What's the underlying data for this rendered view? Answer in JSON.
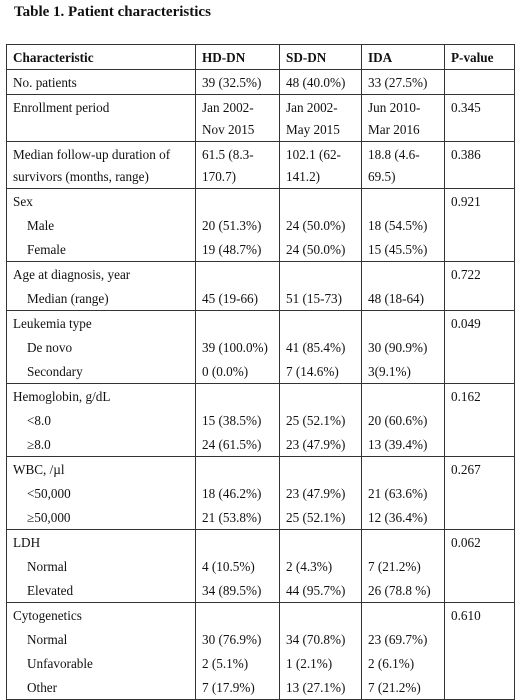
{
  "title": "Table 1. Patient characteristics",
  "header": [
    "Characteristic",
    "HD-DN",
    "SD-DN",
    "IDA",
    "P-value"
  ],
  "rows": {
    "no_patients": [
      "No. patients",
      "39 (32.5%)",
      "48 (40.0%)",
      "33 (27.5%)",
      ""
    ],
    "enrollment": [
      "Enrollment period",
      "Jan 2002-\nNov 2015",
      "Jan 2002-\nMay 2015",
      "Jun 2010-\nMar 2016",
      "0.345"
    ],
    "followup": [
      "Median follow-up duration of\nsurvivors (months, range)",
      "61.5 (8.3-\n170.7)",
      "102.1 (62-\n141.2)",
      "18.8 (4.6-\n69.5)",
      "0.386"
    ],
    "sex": [
      "Sex",
      "",
      "",
      "",
      "0.921"
    ],
    "sex_male": [
      "Male",
      "20 (51.3%)",
      "24 (50.0%)",
      "18 (54.5%)",
      ""
    ],
    "sex_female": [
      "Female",
      "19 (48.7%)",
      "24 (50.0%)",
      "15 (45.5%)",
      ""
    ],
    "age": [
      "Age at diagnosis, year",
      "",
      "",
      "",
      "0.722"
    ],
    "age_median": [
      "Median (range)",
      "45 (19-66)",
      "51 (15-73)",
      "48 (18-64)",
      ""
    ],
    "leuk": [
      "Leukemia type",
      "",
      "",
      "",
      "0.049"
    ],
    "leuk_denovo": [
      "De novo",
      "39 (100.0%)",
      "41 (85.4%)",
      "30 (90.9%)",
      ""
    ],
    "leuk_secondary": [
      "Secondary",
      "0 (0.0%)",
      "7 (14.6%)",
      "3(9.1%)",
      ""
    ],
    "hb": [
      "Hemoglobin, g/dL",
      "",
      "",
      "",
      "0.162"
    ],
    "hb_lt": [
      "<8.0",
      "15 (38.5%)",
      "25 (52.1%)",
      "20 (60.6%)",
      ""
    ],
    "hb_ge": [
      "≥8.0",
      "24 (61.5%)",
      "23 (47.9%)",
      "13 (39.4%)",
      ""
    ],
    "wbc": [
      "WBC, /µl",
      "",
      "",
      "",
      "0.267"
    ],
    "wbc_lt": [
      "<50,000",
      "18 (46.2%)",
      "23 (47.9%)",
      "21 (63.6%)",
      ""
    ],
    "wbc_ge": [
      "≥50,000",
      "21 (53.8%)",
      "25 (52.1%)",
      "12 (36.4%)",
      ""
    ],
    "ldh": [
      "LDH",
      "",
      "",
      "",
      "0.062"
    ],
    "ldh_normal": [
      "Normal",
      "4 (10.5%)",
      "2 (4.3%)",
      "7 (21.2%)",
      ""
    ],
    "ldh_elevated": [
      "Elevated",
      "34 (89.5%)",
      "44 (95.7%)",
      "26 (78.8 %)",
      ""
    ],
    "cyto": [
      "Cytogenetics",
      "",
      "",
      "",
      "0.610"
    ],
    "cyto_normal": [
      "Normal",
      "30 (76.9%)",
      "34 (70.8%)",
      "23 (69.7%)",
      ""
    ],
    "cyto_unfav": [
      "Unfavorable",
      "2 (5.1%)",
      "1 (2.1%)",
      "2 (6.1%)",
      ""
    ],
    "cyto_other": [
      "Other",
      "7 (17.9%)",
      "13 (27.1%)",
      "7 (21.2%)",
      ""
    ]
  }
}
